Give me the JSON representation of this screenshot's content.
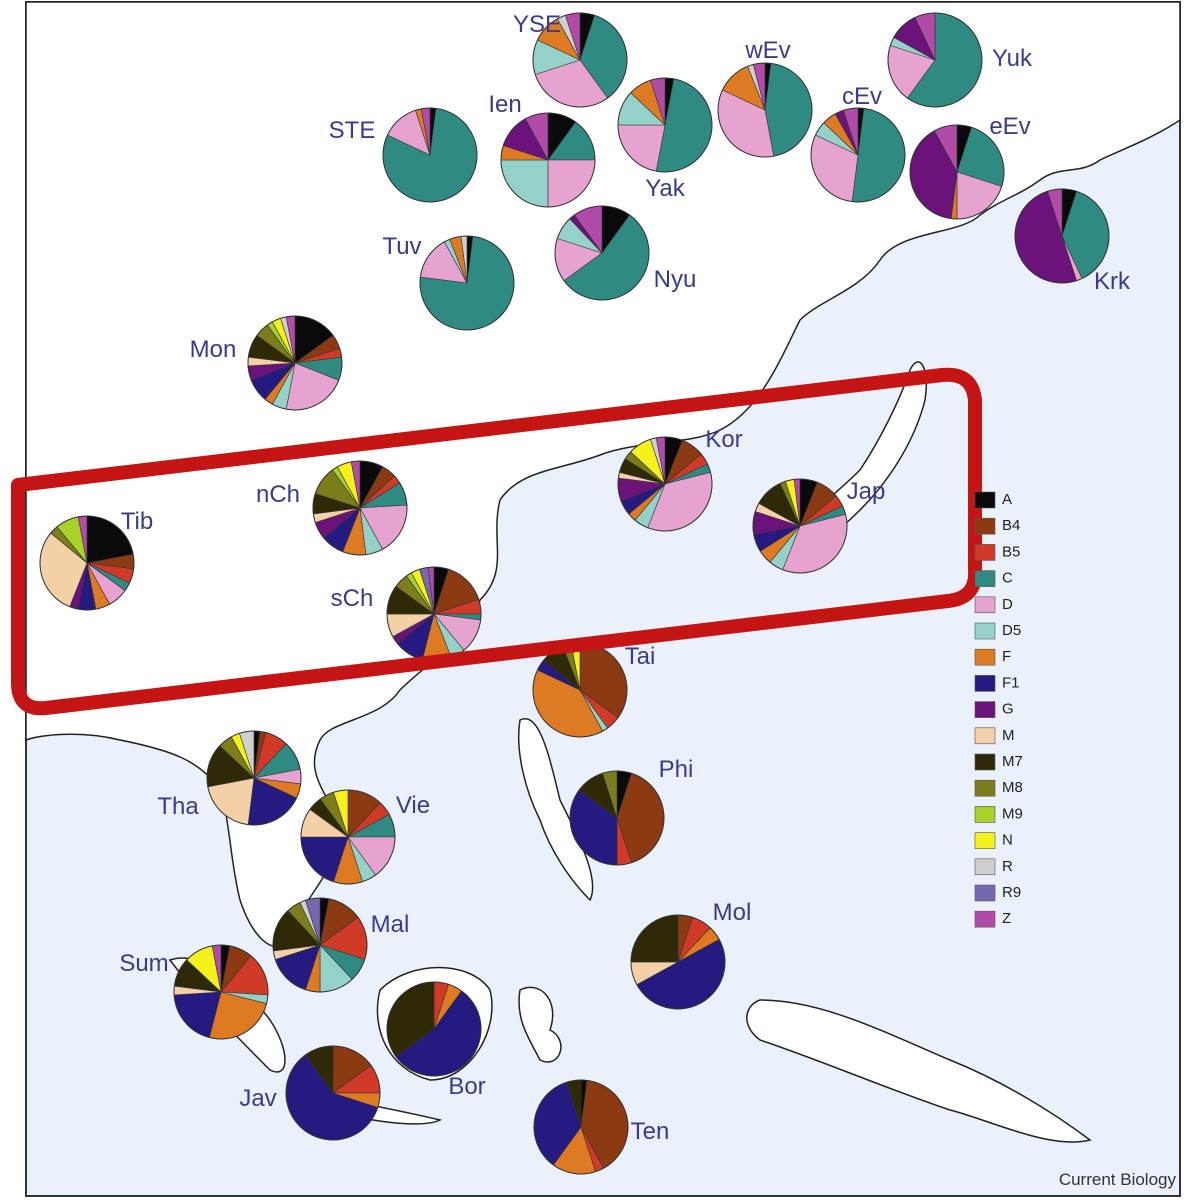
{
  "legend": [
    {
      "name": "A",
      "color": "#0a0a0a"
    },
    {
      "name": "B4",
      "color": "#8b3a12"
    },
    {
      "name": "B5",
      "color": "#d23a28"
    },
    {
      "name": "C",
      "color": "#2f8a82"
    },
    {
      "name": "D",
      "color": "#e7a3cf"
    },
    {
      "name": "D5",
      "color": "#94d1c8"
    },
    {
      "name": "F",
      "color": "#de7a21"
    },
    {
      "name": "F1",
      "color": "#241a80"
    },
    {
      "name": "G",
      "color": "#6b137a"
    },
    {
      "name": "M",
      "color": "#f3d0a6"
    },
    {
      "name": "M7",
      "color": "#2e2a08"
    },
    {
      "name": "M8",
      "color": "#7b7e1a"
    },
    {
      "name": "M9",
      "color": "#a8d12a"
    },
    {
      "name": "N",
      "color": "#f5f11b"
    },
    {
      "name": "R",
      "color": "#cfcfcf"
    },
    {
      "name": "R9",
      "color": "#7668b0"
    },
    {
      "name": "Z",
      "color": "#b24ba8"
    }
  ],
  "populations": [
    {
      "label": "YSE",
      "values": [
        5,
        0,
        0,
        35,
        30,
        12,
        10,
        0,
        0,
        0,
        0,
        0,
        0,
        0,
        3,
        0,
        5
      ]
    },
    {
      "label": "Ien",
      "values": [
        10,
        0,
        0,
        15,
        25,
        25,
        5,
        0,
        12,
        0,
        0,
        0,
        0,
        0,
        0,
        0,
        8
      ]
    },
    {
      "label": "Yak",
      "values": [
        3,
        0,
        0,
        50,
        22,
        12,
        8,
        0,
        0,
        0,
        0,
        0,
        0,
        0,
        0,
        0,
        5
      ]
    },
    {
      "label": "wEv",
      "values": [
        2,
        0,
        0,
        45,
        35,
        0,
        12,
        0,
        0,
        0,
        0,
        0,
        0,
        0,
        2,
        0,
        4
      ]
    },
    {
      "label": "cEv",
      "values": [
        2,
        0,
        0,
        50,
        30,
        5,
        5,
        0,
        3,
        0,
        0,
        0,
        0,
        0,
        0,
        0,
        5
      ]
    },
    {
      "label": "eEv",
      "values": [
        5,
        0,
        0,
        25,
        20,
        0,
        2,
        0,
        40,
        0,
        0,
        0,
        0,
        0,
        0,
        0,
        8
      ]
    },
    {
      "label": "Yuk",
      "values": [
        0,
        0,
        0,
        60,
        20,
        3,
        0,
        0,
        10,
        0,
        0,
        0,
        0,
        0,
        0,
        0,
        7
      ]
    },
    {
      "label": "STE",
      "values": [
        2,
        0,
        0,
        80,
        13,
        0,
        2,
        0,
        0,
        0,
        0,
        0,
        0,
        0,
        0,
        0,
        3
      ]
    },
    {
      "label": "Tuv",
      "values": [
        2,
        0,
        0,
        75,
        15,
        2,
        4,
        0,
        0,
        0,
        0,
        0,
        0,
        0,
        2,
        0,
        0
      ]
    },
    {
      "label": "Nyu",
      "values": [
        10,
        0,
        0,
        55,
        15,
        8,
        0,
        0,
        2,
        0,
        0,
        0,
        0,
        0,
        0,
        0,
        10
      ]
    },
    {
      "label": "Krk",
      "values": [
        5,
        0,
        0,
        38,
        2,
        0,
        0,
        0,
        50,
        0,
        0,
        0,
        0,
        0,
        0,
        0,
        5
      ]
    },
    {
      "label": "Mon",
      "values": [
        15,
        5,
        3,
        8,
        22,
        5,
        3,
        8,
        5,
        3,
        8,
        5,
        2,
        3,
        2,
        0,
        3
      ]
    },
    {
      "label": "Tib",
      "values": [
        22,
        5,
        5,
        3,
        7,
        0,
        5,
        6,
        3,
        30,
        0,
        3,
        8,
        0,
        0,
        0,
        3
      ]
    },
    {
      "label": "nCh",
      "values": [
        8,
        5,
        3,
        8,
        18,
        6,
        8,
        8,
        6,
        3,
        7,
        10,
        2,
        5,
        0,
        0,
        3
      ]
    },
    {
      "label": "sCh",
      "values": [
        5,
        15,
        5,
        2,
        12,
        5,
        10,
        10,
        3,
        8,
        10,
        5,
        2,
        3,
        0,
        3,
        2
      ]
    },
    {
      "label": "Kor",
      "values": [
        6,
        8,
        4,
        3,
        35,
        5,
        3,
        5,
        8,
        2,
        5,
        3,
        0,
        8,
        2,
        0,
        3
      ]
    },
    {
      "label": "Jap",
      "values": [
        6,
        8,
        4,
        3,
        35,
        5,
        5,
        6,
        8,
        3,
        10,
        2,
        0,
        3,
        0,
        0,
        2
      ]
    },
    {
      "label": "Tai",
      "values": [
        0,
        35,
        5,
        0,
        0,
        2,
        40,
        4,
        0,
        0,
        8,
        3,
        0,
        3,
        0,
        0,
        0
      ]
    },
    {
      "label": "Tha",
      "values": [
        2,
        2,
        8,
        10,
        5,
        0,
        5,
        20,
        0,
        20,
        15,
        5,
        0,
        3,
        5,
        0,
        0
      ]
    },
    {
      "label": "Vie",
      "values": [
        0,
        12,
        5,
        8,
        15,
        5,
        10,
        20,
        0,
        10,
        5,
        5,
        0,
        5,
        0,
        0,
        0
      ]
    },
    {
      "label": "Phi",
      "values": [
        5,
        40,
        5,
        0,
        0,
        0,
        0,
        35,
        0,
        0,
        10,
        5,
        0,
        0,
        0,
        0,
        0
      ]
    },
    {
      "label": "Mal",
      "values": [
        3,
        12,
        15,
        8,
        0,
        12,
        5,
        15,
        0,
        3,
        15,
        5,
        0,
        0,
        2,
        5,
        0
      ]
    },
    {
      "label": "Mol",
      "values": [
        0,
        5,
        7,
        0,
        0,
        0,
        5,
        50,
        0,
        8,
        25,
        0,
        0,
        0,
        0,
        0,
        0
      ]
    },
    {
      "label": "Sum",
      "values": [
        3,
        8,
        15,
        0,
        0,
        3,
        25,
        20,
        0,
        3,
        10,
        0,
        0,
        10,
        0,
        0,
        3
      ]
    },
    {
      "label": "Bor",
      "values": [
        0,
        0,
        5,
        0,
        0,
        0,
        5,
        55,
        0,
        0,
        35,
        0,
        0,
        0,
        0,
        0,
        0
      ]
    },
    {
      "label": "Jav",
      "values": [
        0,
        15,
        10,
        0,
        0,
        0,
        5,
        60,
        0,
        0,
        10,
        0,
        0,
        0,
        0,
        0,
        0
      ]
    },
    {
      "label": "Ten",
      "values": [
        2,
        40,
        3,
        0,
        0,
        0,
        15,
        35,
        0,
        0,
        5,
        0,
        0,
        0,
        0,
        0,
        0
      ]
    }
  ],
  "credit": "Current Biology"
}
